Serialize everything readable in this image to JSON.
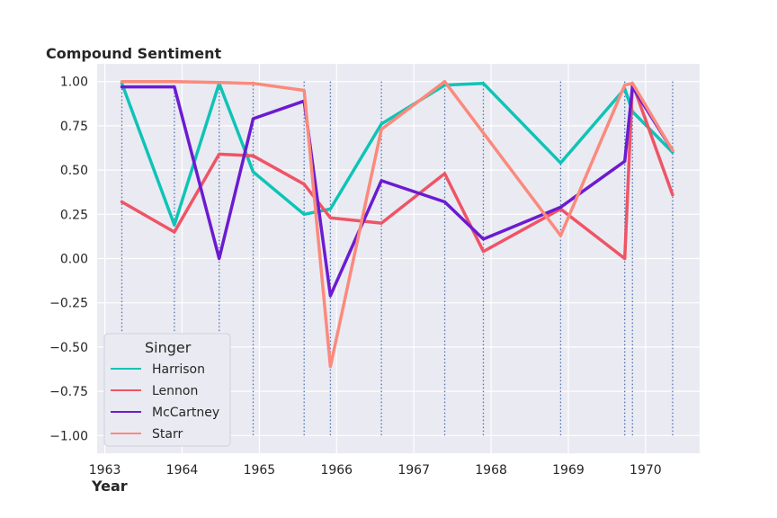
{
  "chart_data": {
    "type": "line",
    "xlabel": "Year",
    "ylabel": "Compound Sentiment",
    "xlim": [
      1962.9,
      1970.7
    ],
    "ylim": [
      -1.1,
      1.1
    ],
    "xticks": [
      1963,
      1964,
      1965,
      1966,
      1967,
      1968,
      1969,
      1970
    ],
    "yticks": [
      1.0,
      0.75,
      0.5,
      0.25,
      0.0,
      -0.25,
      -0.5,
      -0.75,
      -1.0
    ],
    "ytick_labels": [
      "1.00",
      "0.75",
      "0.50",
      "0.25",
      "0.00",
      "−0.25",
      "−0.50",
      "−0.75",
      "−1.00"
    ],
    "grid": true,
    "vertical_markers": [
      1963.22,
      1963.9,
      1964.48,
      1964.92,
      1965.58,
      1965.92,
      1966.58,
      1967.4,
      1967.9,
      1968.9,
      1969.73,
      1969.83,
      1970.35
    ],
    "legend": {
      "title": "Singer",
      "position": "lower-left"
    },
    "series": [
      {
        "name": "Harrison",
        "color": "#0ec4b6",
        "x": [
          1963.22,
          1963.9,
          1964.48,
          1964.92,
          1965.58,
          1965.92,
          1966.58,
          1967.4,
          1967.9,
          1968.9,
          1969.73,
          1969.83,
          1970.35
        ],
        "y": [
          0.99,
          0.19,
          0.99,
          0.49,
          0.25,
          0.28,
          0.76,
          0.98,
          0.99,
          0.54,
          0.96,
          0.83,
          0.6
        ]
      },
      {
        "name": "Lennon",
        "color": "#ef5466",
        "x": [
          1963.22,
          1963.9,
          1964.48,
          1964.92,
          1965.58,
          1965.92,
          1966.58,
          1967.4,
          1967.9,
          1968.9,
          1969.73,
          1969.83,
          1970.35
        ],
        "y": [
          0.32,
          0.15,
          0.59,
          0.58,
          0.42,
          0.23,
          0.2,
          0.48,
          0.04,
          0.28,
          0.0,
          0.99,
          0.36
        ]
      },
      {
        "name": "McCartney",
        "color": "#6c1bd1",
        "x": [
          1963.22,
          1963.9,
          1964.48,
          1964.92,
          1965.58,
          1965.92,
          1966.58,
          1967.4,
          1967.9,
          1968.9,
          1969.73,
          1969.83,
          1970.35
        ],
        "y": [
          0.97,
          0.97,
          0.0,
          0.79,
          0.89,
          -0.21,
          0.44,
          0.32,
          0.11,
          0.29,
          0.55,
          0.97,
          0.61
        ]
      },
      {
        "name": "Starr",
        "color": "#fb8a7c",
        "x": [
          1963.22,
          1963.9,
          1964.48,
          1964.92,
          1965.58,
          1965.92,
          1966.58,
          1967.4,
          1967.9,
          1968.9,
          1969.73,
          1969.83,
          1970.35
        ],
        "y": [
          1.0,
          1.0,
          0.995,
          0.99,
          0.95,
          -0.61,
          0.73,
          1.0,
          0.71,
          0.13,
          0.98,
          0.99,
          0.61
        ]
      }
    ]
  }
}
